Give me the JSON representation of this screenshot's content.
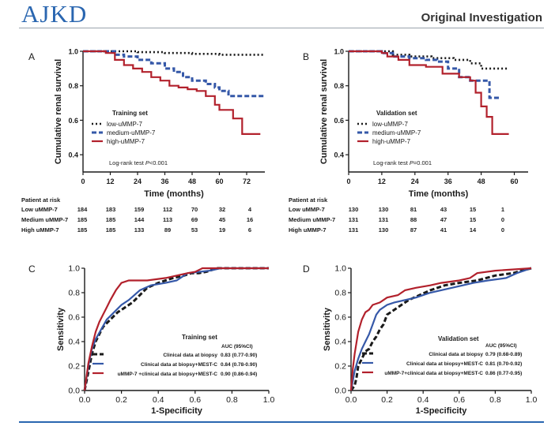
{
  "header": {
    "journal": "AJKD",
    "section": "Original Investigation"
  },
  "colors": {
    "brand": "#2a66b0",
    "low": "#1a1a1a",
    "medium": "#3558a8",
    "high": "#b2212c"
  },
  "chart_data": [
    {
      "panel": "A",
      "type": "line",
      "title": "Training set",
      "xlabel": "Time (months)",
      "ylabel": "Cumulative renal survival",
      "xlim": [
        0,
        80
      ],
      "ylim": [
        0.3,
        1.0
      ],
      "xticks": [
        "0",
        "12",
        "24",
        "36",
        "48",
        "60",
        "72"
      ],
      "yticks": [
        "0.4",
        "0.6",
        "0.8",
        "1.0"
      ],
      "note_prefix": "Log-rank test ",
      "note_italic": "P",
      "note_suffix": "<0.001",
      "series": [
        {
          "name": "low-uMMP-7",
          "style": "dotted",
          "color": "#1a1a1a",
          "points": [
            [
              0,
              1.0
            ],
            [
              24,
              0.995
            ],
            [
              36,
              0.99
            ],
            [
              48,
              0.985
            ],
            [
              60,
              0.98
            ],
            [
              80,
              0.98
            ]
          ]
        },
        {
          "name": "medium-uMMP-7",
          "style": "dashed",
          "color": "#3558a8",
          "points": [
            [
              0,
              1.0
            ],
            [
              10,
              1.0
            ],
            [
              14,
              0.98
            ],
            [
              18,
              0.97
            ],
            [
              24,
              0.95
            ],
            [
              30,
              0.93
            ],
            [
              36,
              0.9
            ],
            [
              40,
              0.88
            ],
            [
              44,
              0.85
            ],
            [
              48,
              0.83
            ],
            [
              54,
              0.81
            ],
            [
              58,
              0.79
            ],
            [
              60,
              0.77
            ],
            [
              64,
              0.74
            ],
            [
              80,
              0.74
            ]
          ]
        },
        {
          "name": "high-uMMP-7",
          "style": "solid",
          "color": "#b2212c",
          "points": [
            [
              0,
              1.0
            ],
            [
              10,
              0.99
            ],
            [
              14,
              0.95
            ],
            [
              18,
              0.92
            ],
            [
              22,
              0.9
            ],
            [
              26,
              0.88
            ],
            [
              30,
              0.85
            ],
            [
              34,
              0.83
            ],
            [
              38,
              0.8
            ],
            [
              42,
              0.79
            ],
            [
              46,
              0.78
            ],
            [
              50,
              0.77
            ],
            [
              54,
              0.74
            ],
            [
              58,
              0.69
            ],
            [
              60,
              0.66
            ],
            [
              66,
              0.61
            ],
            [
              70,
              0.52
            ],
            [
              78,
              0.52
            ]
          ]
        }
      ],
      "risk": {
        "title": "Patient at risk",
        "rows": [
          {
            "label": "Low uMMP-7",
            "values": [
              "184",
              "183",
              "159",
              "112",
              "70",
              "32",
              "4"
            ]
          },
          {
            "label": "Medium uMMP-7",
            "values": [
              "185",
              "185",
              "144",
              "113",
              "69",
              "45",
              "16"
            ]
          },
          {
            "label": "High uMMP-7",
            "values": [
              "185",
              "185",
              "133",
              "89",
              "53",
              "19",
              "6"
            ]
          }
        ]
      }
    },
    {
      "panel": "B",
      "type": "line",
      "title": "Validation set",
      "xlabel": "Time (months)",
      "ylabel": "Cumulative renal survival",
      "xlim": [
        0,
        65
      ],
      "ylim": [
        0.3,
        1.0
      ],
      "xticks": [
        "0",
        "12",
        "24",
        "36",
        "48",
        "60"
      ],
      "yticks": [
        "0.4",
        "0.6",
        "0.8",
        "1.0"
      ],
      "note_prefix": "Log-rank test ",
      "note_italic": "P",
      "note_suffix": "=0.001",
      "series": [
        {
          "name": "low-uMMP-7",
          "style": "dotted",
          "color": "#1a1a1a",
          "points": [
            [
              0,
              1.0
            ],
            [
              12,
              1.0
            ],
            [
              16,
              0.98
            ],
            [
              22,
              0.97
            ],
            [
              30,
              0.96
            ],
            [
              38,
              0.95
            ],
            [
              44,
              0.93
            ],
            [
              48,
              0.9
            ],
            [
              58,
              0.9
            ]
          ]
        },
        {
          "name": "medium-uMMP-7",
          "style": "dashed",
          "color": "#3558a8",
          "points": [
            [
              0,
              1.0
            ],
            [
              12,
              0.99
            ],
            [
              16,
              0.97
            ],
            [
              22,
              0.96
            ],
            [
              28,
              0.95
            ],
            [
              32,
              0.94
            ],
            [
              36,
              0.9
            ],
            [
              40,
              0.85
            ],
            [
              44,
              0.83
            ],
            [
              50,
              0.83
            ],
            [
              51,
              0.73
            ],
            [
              55,
              0.73
            ]
          ]
        },
        {
          "name": "high-uMMP-7",
          "style": "solid",
          "color": "#b2212c",
          "points": [
            [
              0,
              1.0
            ],
            [
              12,
              0.99
            ],
            [
              14,
              0.97
            ],
            [
              18,
              0.95
            ],
            [
              22,
              0.92
            ],
            [
              28,
              0.91
            ],
            [
              34,
              0.87
            ],
            [
              40,
              0.85
            ],
            [
              44,
              0.83
            ],
            [
              46,
              0.76
            ],
            [
              48,
              0.68
            ],
            [
              50,
              0.62
            ],
            [
              52,
              0.52
            ],
            [
              58,
              0.52
            ]
          ]
        }
      ],
      "risk": {
        "title": "Patient at risk",
        "rows": [
          {
            "label": "Low uMMP-7",
            "values": [
              "130",
              "130",
              "81",
              "43",
              "15",
              "1"
            ]
          },
          {
            "label": "Medium uMMP-7",
            "values": [
              "131",
              "131",
              "88",
              "47",
              "15",
              "0"
            ]
          },
          {
            "label": "High uMMP-7",
            "values": [
              "131",
              "130",
              "87",
              "41",
              "14",
              "0"
            ]
          }
        ]
      }
    },
    {
      "panel": "C",
      "type": "line",
      "title": "Training set",
      "xlabel": "1-Specificity",
      "ylabel": "Sensitivity",
      "xlim": [
        0,
        1
      ],
      "ylim": [
        0,
        1
      ],
      "xticks": [
        "0.0",
        "0.2",
        "0.4",
        "0.6",
        "0.8",
        "1.0"
      ],
      "yticks": [
        "0.0",
        "0.2",
        "0.4",
        "0.6",
        "0.8",
        "1.0"
      ],
      "auc_header": "AUC (95%CI)",
      "series": [
        {
          "name": "Clinical data at biopsy",
          "auc": "0.83 (0.77-0.90)",
          "style": "dashed",
          "color": "#1a1a1a",
          "points": [
            [
              0,
              0
            ],
            [
              0.02,
              0.15
            ],
            [
              0.04,
              0.3
            ],
            [
              0.06,
              0.4
            ],
            [
              0.08,
              0.46
            ],
            [
              0.1,
              0.52
            ],
            [
              0.14,
              0.58
            ],
            [
              0.18,
              0.64
            ],
            [
              0.22,
              0.68
            ],
            [
              0.26,
              0.72
            ],
            [
              0.3,
              0.78
            ],
            [
              0.34,
              0.84
            ],
            [
              0.4,
              0.88
            ],
            [
              0.48,
              0.92
            ],
            [
              0.54,
              0.94
            ],
            [
              0.58,
              0.96
            ],
            [
              0.62,
              0.96
            ],
            [
              0.66,
              0.97
            ],
            [
              0.72,
              1.0
            ],
            [
              1.0,
              1.0
            ]
          ]
        },
        {
          "name": "Clinical data at biopsy+MEST-C",
          "auc": "0.84 (0.78-0.90)",
          "style": "solid",
          "color": "#3558a8",
          "points": [
            [
              0,
              0
            ],
            [
              0.02,
              0.2
            ],
            [
              0.04,
              0.34
            ],
            [
              0.06,
              0.42
            ],
            [
              0.09,
              0.5
            ],
            [
              0.12,
              0.58
            ],
            [
              0.16,
              0.64
            ],
            [
              0.2,
              0.7
            ],
            [
              0.24,
              0.74
            ],
            [
              0.3,
              0.82
            ],
            [
              0.36,
              0.86
            ],
            [
              0.44,
              0.88
            ],
            [
              0.5,
              0.9
            ],
            [
              0.56,
              0.96
            ],
            [
              0.68,
              0.98
            ],
            [
              0.74,
              1.0
            ],
            [
              1.0,
              1.0
            ]
          ]
        },
        {
          "name": "uMMP-7 +clinical data at biopsy+MEST-C",
          "auc": "0.90 (0.86-0.94)",
          "style": "solid",
          "color": "#b2212c",
          "points": [
            [
              0,
              0
            ],
            [
              0.02,
              0.22
            ],
            [
              0.04,
              0.36
            ],
            [
              0.06,
              0.48
            ],
            [
              0.08,
              0.56
            ],
            [
              0.1,
              0.62
            ],
            [
              0.12,
              0.68
            ],
            [
              0.14,
              0.74
            ],
            [
              0.17,
              0.82
            ],
            [
              0.2,
              0.88
            ],
            [
              0.24,
              0.9
            ],
            [
              0.3,
              0.9
            ],
            [
              0.34,
              0.9
            ],
            [
              0.44,
              0.92
            ],
            [
              0.5,
              0.94
            ],
            [
              0.56,
              0.96
            ],
            [
              0.6,
              0.97
            ],
            [
              0.64,
              1.0
            ],
            [
              1.0,
              1.0
            ]
          ]
        }
      ]
    },
    {
      "panel": "D",
      "type": "line",
      "title": "Validation set",
      "xlabel": "1-Specificity",
      "ylabel": "Sensitivity",
      "xlim": [
        0,
        1
      ],
      "ylim": [
        0,
        1
      ],
      "xticks": [
        "0.0",
        "0.2",
        "0.4",
        "0.6",
        "0.8",
        "1.0"
      ],
      "yticks": [
        "0.0",
        "0.2",
        "0.4",
        "0.6",
        "0.8",
        "1.0"
      ],
      "auc_header": "AUC (95%CI)",
      "series": [
        {
          "name": "Clinical data at biopsy",
          "auc": "0.79 (0.68-0.89)",
          "style": "dashed",
          "color": "#1a1a1a",
          "points": [
            [
              0,
              0
            ],
            [
              0.02,
              0.04
            ],
            [
              0.03,
              0.1
            ],
            [
              0.04,
              0.2
            ],
            [
              0.06,
              0.26
            ],
            [
              0.08,
              0.32
            ],
            [
              0.1,
              0.34
            ],
            [
              0.12,
              0.4
            ],
            [
              0.14,
              0.44
            ],
            [
              0.16,
              0.5
            ],
            [
              0.18,
              0.54
            ],
            [
              0.2,
              0.62
            ],
            [
              0.24,
              0.66
            ],
            [
              0.28,
              0.7
            ],
            [
              0.32,
              0.74
            ],
            [
              0.38,
              0.78
            ],
            [
              0.44,
              0.82
            ],
            [
              0.52,
              0.86
            ],
            [
              0.6,
              0.88
            ],
            [
              0.7,
              0.9
            ],
            [
              0.8,
              0.94
            ],
            [
              0.9,
              0.96
            ],
            [
              1.0,
              1.0
            ]
          ]
        },
        {
          "name": "Clinical data at biopsy+MEST-C",
          "auc": "0.81 (0.70-0.92)",
          "style": "solid",
          "color": "#3558a8",
          "points": [
            [
              0,
              0
            ],
            [
              0.02,
              0.16
            ],
            [
              0.04,
              0.26
            ],
            [
              0.06,
              0.34
            ],
            [
              0.08,
              0.4
            ],
            [
              0.1,
              0.46
            ],
            [
              0.12,
              0.54
            ],
            [
              0.14,
              0.62
            ],
            [
              0.16,
              0.66
            ],
            [
              0.2,
              0.7
            ],
            [
              0.24,
              0.72
            ],
            [
              0.3,
              0.74
            ],
            [
              0.36,
              0.76
            ],
            [
              0.4,
              0.78
            ],
            [
              0.44,
              0.8
            ],
            [
              0.5,
              0.82
            ],
            [
              0.56,
              0.84
            ],
            [
              0.62,
              0.86
            ],
            [
              0.68,
              0.88
            ],
            [
              0.76,
              0.9
            ],
            [
              0.86,
              0.92
            ],
            [
              0.92,
              0.96
            ],
            [
              1.0,
              1.0
            ]
          ]
        },
        {
          "name": "uMMP-7+clinical data at biopsy+MEST-C",
          "auc": "0.86 (0.77-0.95)",
          "style": "solid",
          "color": "#b2212c",
          "points": [
            [
              0,
              0
            ],
            [
              0.01,
              0.18
            ],
            [
              0.02,
              0.3
            ],
            [
              0.04,
              0.48
            ],
            [
              0.06,
              0.58
            ],
            [
              0.08,
              0.64
            ],
            [
              0.1,
              0.66
            ],
            [
              0.12,
              0.7
            ],
            [
              0.16,
              0.72
            ],
            [
              0.2,
              0.76
            ],
            [
              0.26,
              0.78
            ],
            [
              0.3,
              0.82
            ],
            [
              0.36,
              0.84
            ],
            [
              0.44,
              0.86
            ],
            [
              0.5,
              0.88
            ],
            [
              0.6,
              0.9
            ],
            [
              0.66,
              0.92
            ],
            [
              0.7,
              0.96
            ],
            [
              0.8,
              0.98
            ],
            [
              1.0,
              1.0
            ]
          ]
        }
      ]
    }
  ]
}
